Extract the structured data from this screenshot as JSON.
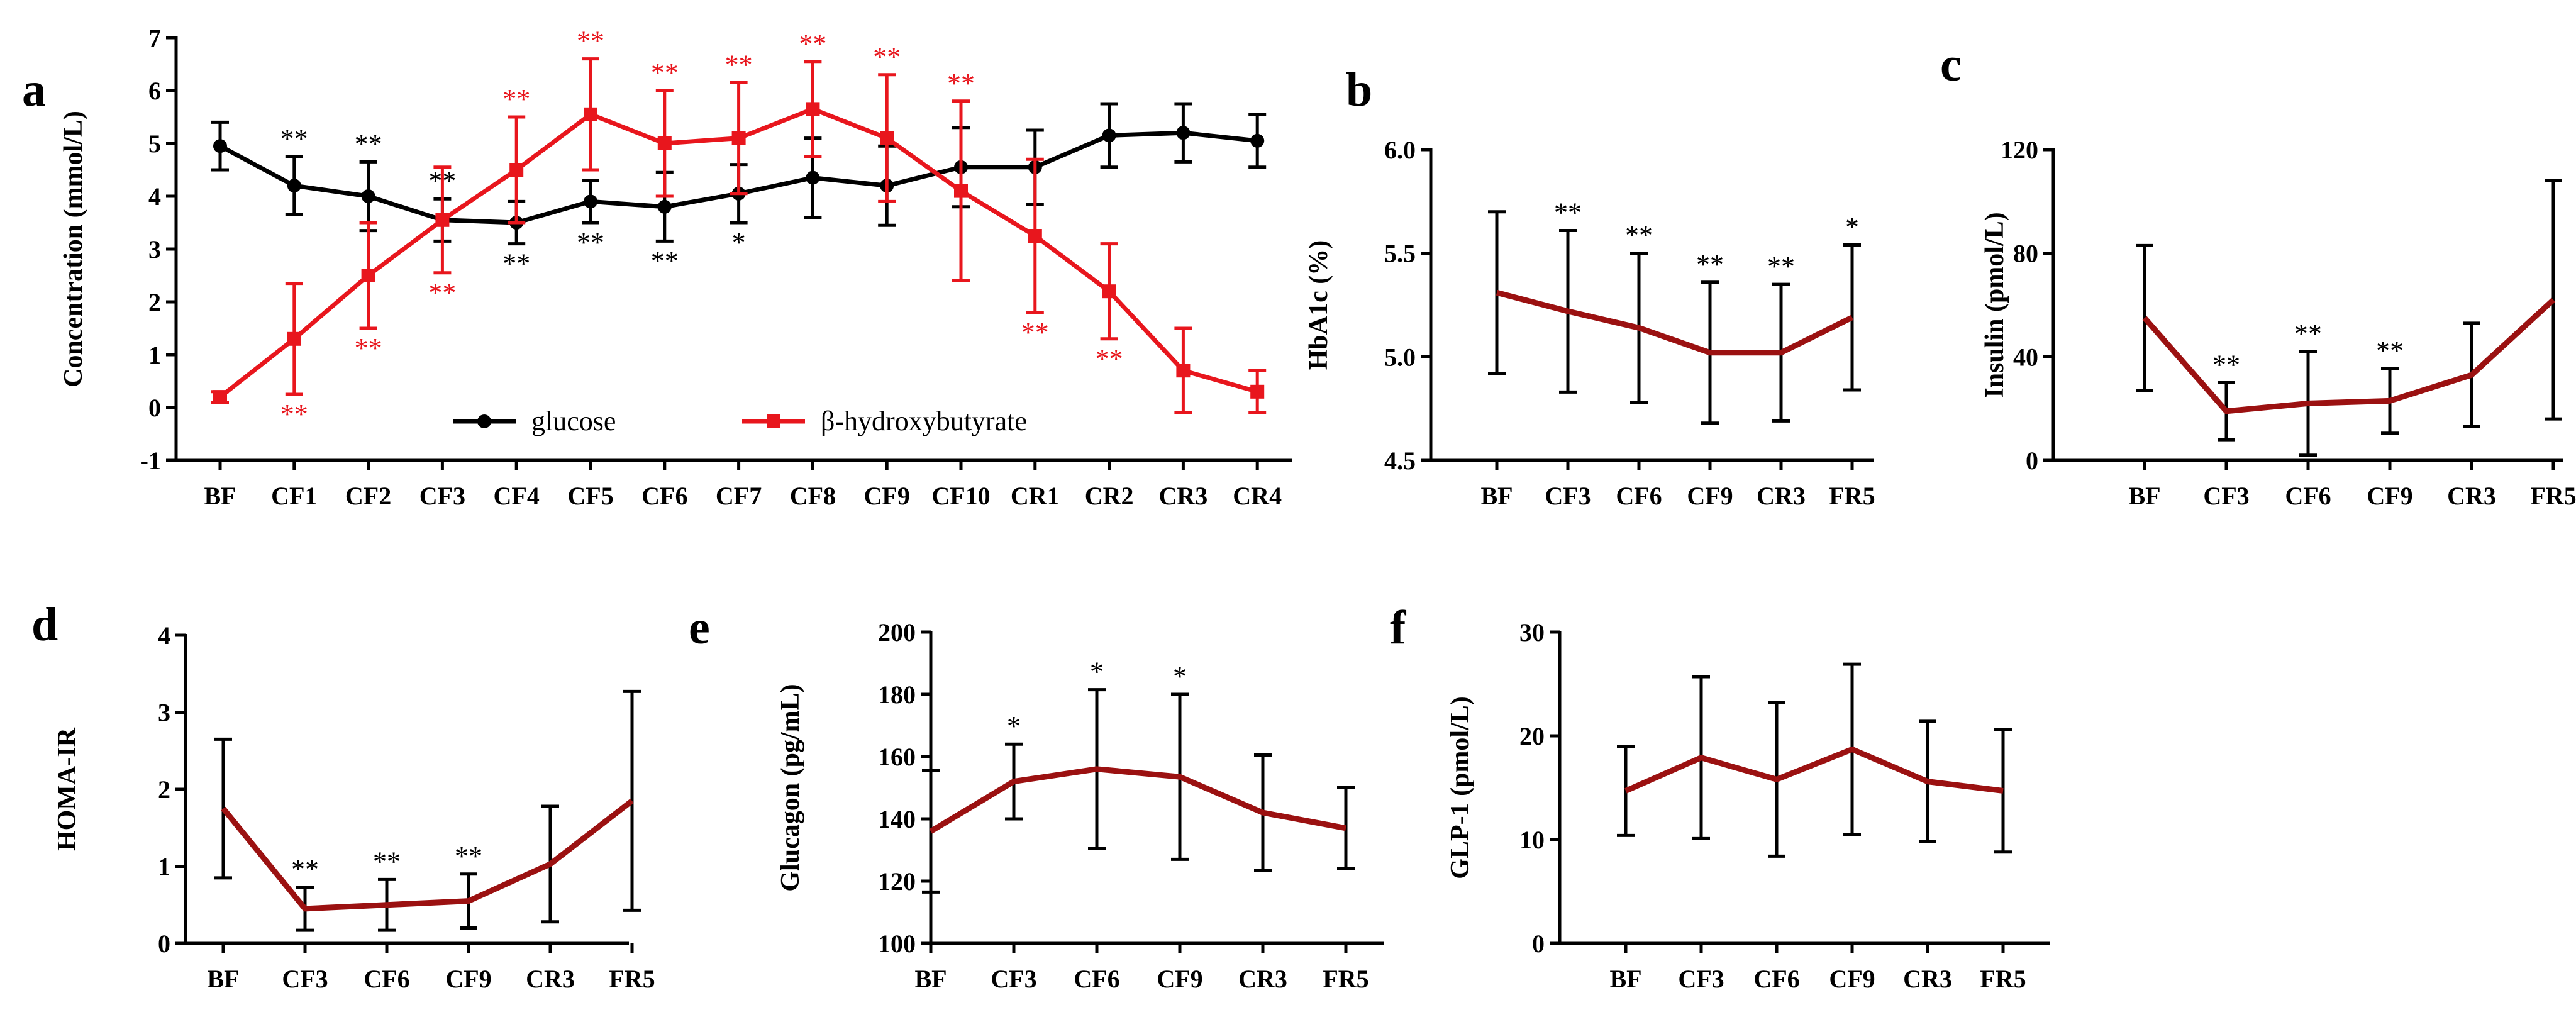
{
  "colors": {
    "glucose": "#000000",
    "bhb": "#e8161d",
    "dark_red": "#9b1111",
    "axis": "#000000"
  },
  "chart_data": [
    {
      "id": "a",
      "panel_label": "a",
      "type": "line",
      "title": "",
      "ylabel": "Concentration (mmol/L)",
      "xlabel": "",
      "ylim": [
        -1,
        7
      ],
      "yticks": [
        -1,
        0,
        1,
        2,
        3,
        4,
        5,
        6,
        7
      ],
      "categories": [
        "BF",
        "CF1",
        "CF2",
        "CF3",
        "CF4",
        "CF5",
        "CF6",
        "CF7",
        "CF8",
        "CF9",
        "CF10",
        "CR1",
        "CR2",
        "CR3",
        "CR4"
      ],
      "legend_position": "bottom-center",
      "series": [
        {
          "name": "glucose",
          "color_key": "glucose",
          "marker": "circle",
          "values": [
            4.95,
            4.2,
            4.0,
            3.55,
            3.5,
            3.9,
            3.8,
            4.05,
            4.35,
            4.2,
            4.55,
            4.55,
            5.15,
            5.2,
            5.05
          ],
          "errors": [
            0.45,
            0.55,
            0.65,
            0.4,
            0.4,
            0.4,
            0.65,
            0.55,
            0.75,
            0.75,
            0.75,
            0.7,
            0.6,
            0.55,
            0.5
          ],
          "sig": [
            "",
            "**",
            "**",
            "**",
            "**",
            "**",
            "**",
            "*",
            "",
            "",
            "",
            "",
            "",
            "",
            ""
          ],
          "sig_pos": [
            "",
            "above",
            "above",
            "above",
            "below",
            "below",
            "below",
            "below",
            "",
            "",
            "",
            "",
            "",
            "",
            ""
          ]
        },
        {
          "name": "β-hydroxybutyrate",
          "color_key": "bhb",
          "marker": "square",
          "values": [
            0.2,
            1.3,
            2.5,
            3.55,
            4.5,
            5.55,
            5.0,
            5.1,
            5.65,
            5.1,
            4.1,
            3.25,
            2.2,
            0.7,
            0.3
          ],
          "errors": [
            0.1,
            1.05,
            1.0,
            1.0,
            1.0,
            1.05,
            1.0,
            1.05,
            0.9,
            1.2,
            1.7,
            1.45,
            0.9,
            0.8,
            0.4
          ],
          "sig": [
            "",
            "**",
            "**",
            "**",
            "**",
            "**",
            "**",
            "**",
            "**",
            "**",
            "**",
            "**",
            "**",
            "",
            ""
          ],
          "sig_pos": [
            "",
            "below",
            "below",
            "below",
            "above",
            "above",
            "above",
            "above",
            "above",
            "above",
            "above",
            "below",
            "below",
            "",
            ""
          ]
        }
      ]
    },
    {
      "id": "b",
      "panel_label": "b",
      "type": "line",
      "ylabel": "HbA1c (%)",
      "ylim": [
        4.5,
        6.0
      ],
      "yticks": [
        4.5,
        5.0,
        5.5,
        6.0
      ],
      "categories": [
        "BF",
        "CF3",
        "CF6",
        "CF9",
        "CR3",
        "FR5"
      ],
      "series": [
        {
          "name": "HbA1c",
          "color_key": "dark_red",
          "values": [
            5.31,
            5.22,
            5.14,
            5.02,
            5.02,
            5.19
          ],
          "errors": [
            0.39,
            0.39,
            0.36,
            0.34,
            0.33,
            0.35
          ],
          "sig": [
            "",
            "**",
            "**",
            "**",
            "**",
            "*"
          ],
          "sig_pos": [
            "",
            "above",
            "above",
            "above",
            "above",
            "above"
          ]
        }
      ]
    },
    {
      "id": "c",
      "panel_label": "c",
      "type": "line",
      "ylabel": "Insulin (pmol/L)",
      "ylim": [
        0,
        120
      ],
      "yticks": [
        0,
        40,
        80,
        120
      ],
      "categories": [
        "BF",
        "CF3",
        "CF6",
        "CF9",
        "CR3",
        "FR5"
      ],
      "series": [
        {
          "name": "Insulin",
          "color_key": "dark_red",
          "values": [
            55,
            19,
            22,
            23,
            33,
            62
          ],
          "errors": [
            28,
            11,
            20,
            12.5,
            20,
            46
          ],
          "sig": [
            "",
            "**",
            "**",
            "**",
            "",
            ""
          ],
          "sig_pos": [
            "",
            "above",
            "above",
            "above",
            "",
            ""
          ]
        }
      ]
    },
    {
      "id": "d",
      "panel_label": "d",
      "type": "line",
      "ylabel": "HOMA-IR",
      "ylim": [
        0,
        4
      ],
      "yticks": [
        0,
        1,
        2,
        3,
        4
      ],
      "categories": [
        "BF",
        "CF3",
        "CF6",
        "CF9",
        "CR3",
        "FR5"
      ],
      "series": [
        {
          "name": "HOMA-IR",
          "color_key": "dark_red",
          "values": [
            1.75,
            0.45,
            0.5,
            0.55,
            1.03,
            1.85
          ],
          "errors": [
            0.9,
            0.28,
            0.33,
            0.35,
            0.75,
            1.42
          ],
          "sig": [
            "",
            "**",
            "**",
            "**",
            "",
            ""
          ],
          "sig_pos": [
            "",
            "above",
            "above",
            "above",
            "",
            ""
          ]
        }
      ]
    },
    {
      "id": "e",
      "panel_label": "e",
      "type": "line",
      "ylabel": "Glucagon (pg/mL)",
      "ylim": [
        100,
        200
      ],
      "yticks": [
        100,
        120,
        140,
        160,
        180,
        200
      ],
      "categories": [
        "BF",
        "CF3",
        "CF6",
        "CF9",
        "CR3",
        "FR5"
      ],
      "series": [
        {
          "name": "Glucagon",
          "color_key": "dark_red",
          "values": [
            136,
            152,
            156,
            153.5,
            142,
            137
          ],
          "errors": [
            19.5,
            12,
            25.5,
            26.5,
            18.5,
            13
          ],
          "sig": [
            "",
            "*",
            "*",
            "*",
            "",
            ""
          ],
          "sig_pos": [
            "",
            "above",
            "above",
            "above",
            "",
            ""
          ]
        }
      ]
    },
    {
      "id": "f",
      "panel_label": "f",
      "type": "line",
      "ylabel": "GLP-1 (pmol/L)",
      "ylim": [
        0,
        30
      ],
      "yticks": [
        0,
        10,
        20,
        30
      ],
      "categories": [
        "BF",
        "CF3",
        "CF6",
        "CF9",
        "CR3",
        "FR5"
      ],
      "series": [
        {
          "name": "GLP-1",
          "color_key": "dark_red",
          "values": [
            14.7,
            17.9,
            15.8,
            18.7,
            15.6,
            14.7
          ],
          "errors": [
            4.3,
            7.8,
            7.4,
            8.2,
            5.8,
            5.9
          ],
          "sig": [
            "",
            "",
            "",
            "",
            "",
            ""
          ],
          "sig_pos": [
            "",
            "",
            "",
            "",
            "",
            ""
          ]
        }
      ]
    }
  ]
}
